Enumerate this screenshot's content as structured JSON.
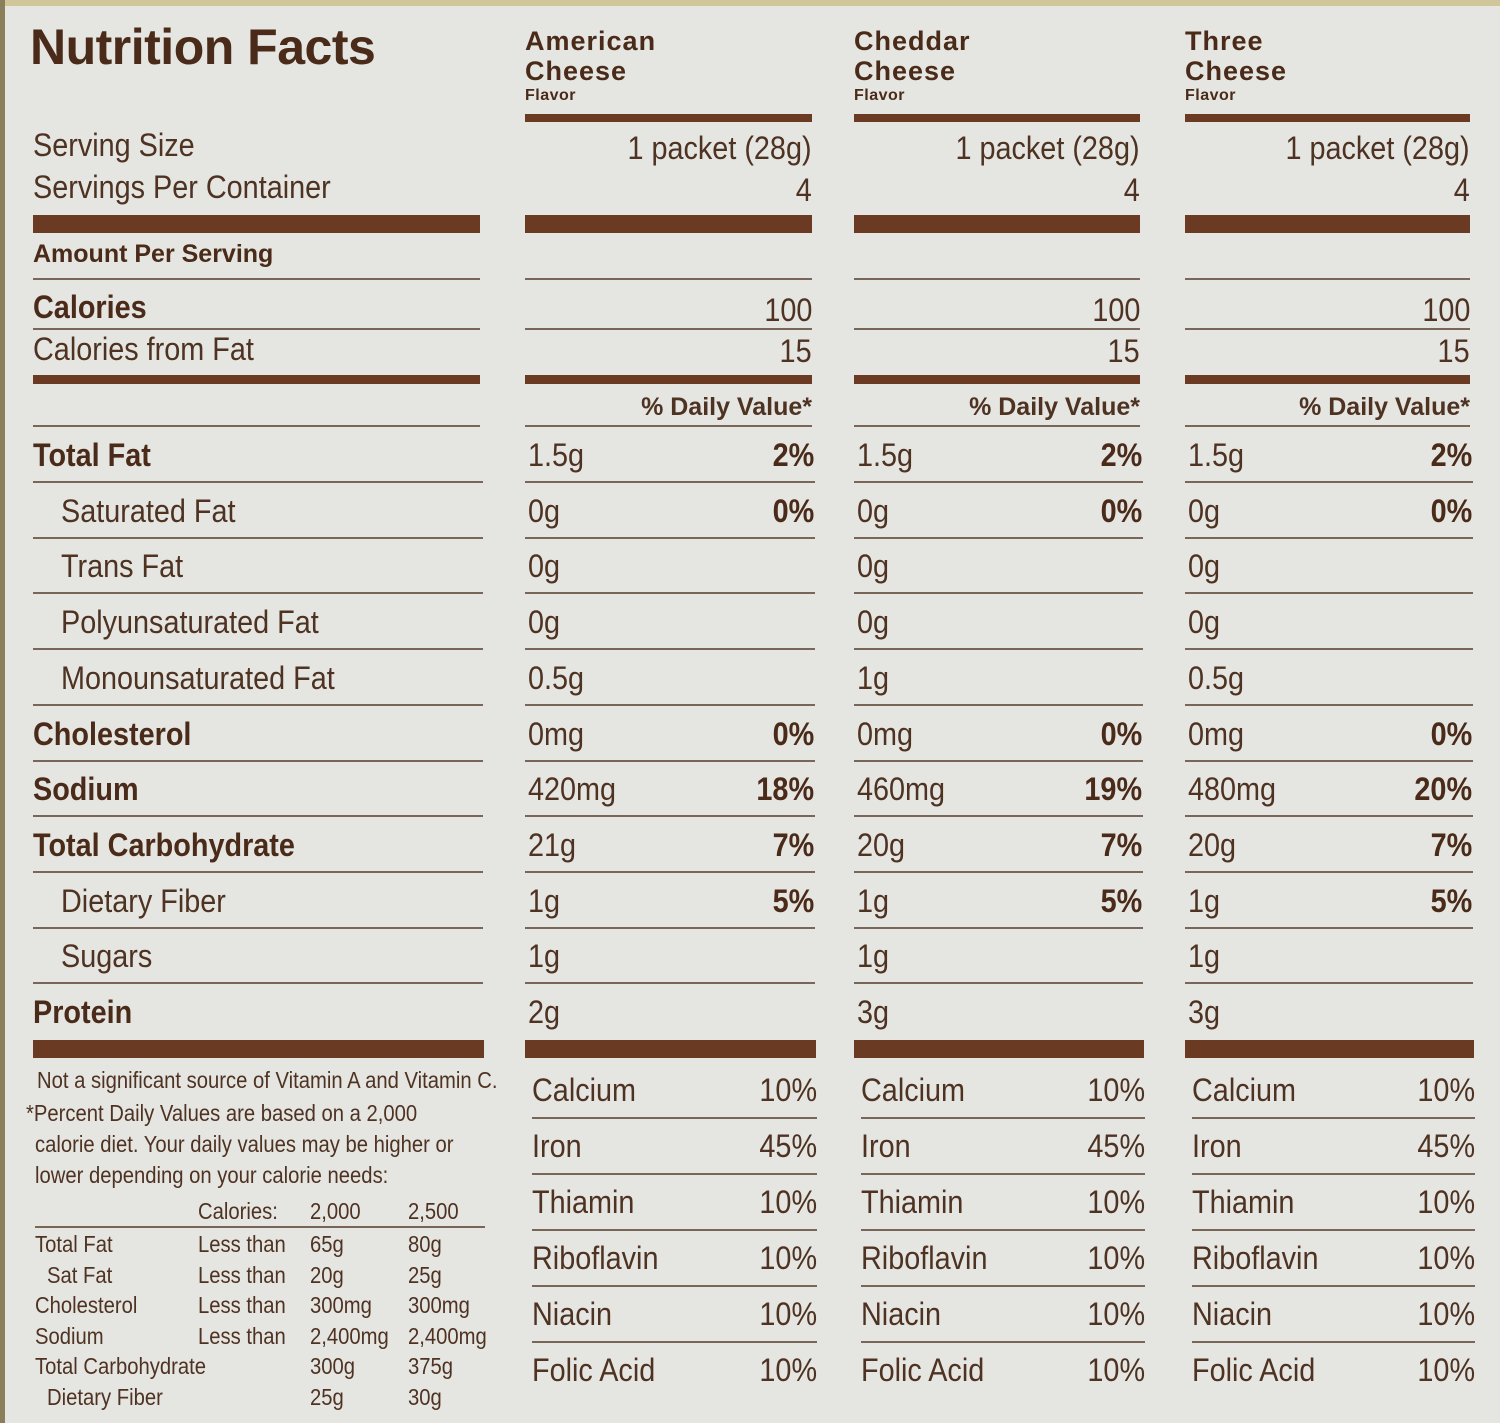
{
  "title": "Nutrition Facts",
  "colors": {
    "text": "#4e3222",
    "bars": "#6a3a22",
    "background": "#e5e5e1"
  },
  "flavors": [
    {
      "name_line1": "American",
      "name_line2": "Cheese",
      "sub": "Flavor",
      "serving_size": "1 packet (28g)",
      "servings": "4",
      "calories": "100",
      "calories_from_fat": "15"
    },
    {
      "name_line1": "Cheddar",
      "name_line2": "Cheese",
      "sub": "Flavor",
      "serving_size": "1 packet (28g)",
      "servings": "4",
      "calories": "100",
      "calories_from_fat": "15"
    },
    {
      "name_line1": "Three",
      "name_line2": "Cheese",
      "sub": "Flavor",
      "serving_size": "1 packet (28g)",
      "servings": "4",
      "calories": "100",
      "calories_from_fat": "15"
    }
  ],
  "labels": {
    "serving_size": "Serving Size",
    "servings_per_container": "Servings Per Container",
    "amount_per_serving": "Amount Per Serving",
    "calories": "Calories",
    "calories_from_fat": "Calories from Fat",
    "daily_value": "% Daily Value*"
  },
  "nutrients": [
    {
      "label": "Total Fat",
      "bold": true,
      "indent": false,
      "values": [
        {
          "amount": "1.5g",
          "dv": "2%"
        },
        {
          "amount": "1.5g",
          "dv": "2%"
        },
        {
          "amount": "1.5g",
          "dv": "2%"
        }
      ]
    },
    {
      "label": "Saturated Fat",
      "bold": false,
      "indent": true,
      "values": [
        {
          "amount": "0g",
          "dv": "0%"
        },
        {
          "amount": "0g",
          "dv": "0%"
        },
        {
          "amount": "0g",
          "dv": "0%"
        }
      ]
    },
    {
      "label": "Trans Fat",
      "bold": false,
      "indent": true,
      "values": [
        {
          "amount": "0g",
          "dv": ""
        },
        {
          "amount": "0g",
          "dv": ""
        },
        {
          "amount": "0g",
          "dv": ""
        }
      ]
    },
    {
      "label": "Polyunsaturated Fat",
      "bold": false,
      "indent": true,
      "values": [
        {
          "amount": "0g",
          "dv": ""
        },
        {
          "amount": "0g",
          "dv": ""
        },
        {
          "amount": "0g",
          "dv": ""
        }
      ]
    },
    {
      "label": "Monounsaturated Fat",
      "bold": false,
      "indent": true,
      "values": [
        {
          "amount": "0.5g",
          "dv": ""
        },
        {
          "amount": "1g",
          "dv": ""
        },
        {
          "amount": "0.5g",
          "dv": ""
        }
      ]
    },
    {
      "label": "Cholesterol",
      "bold": true,
      "indent": false,
      "values": [
        {
          "amount": "0mg",
          "dv": "0%"
        },
        {
          "amount": "0mg",
          "dv": "0%"
        },
        {
          "amount": "0mg",
          "dv": "0%"
        }
      ]
    },
    {
      "label": "Sodium",
      "bold": true,
      "indent": false,
      "values": [
        {
          "amount": "420mg",
          "dv": "18%"
        },
        {
          "amount": "460mg",
          "dv": "19%"
        },
        {
          "amount": "480mg",
          "dv": "20%"
        }
      ]
    },
    {
      "label": "Total Carbohydrate",
      "bold": true,
      "indent": false,
      "values": [
        {
          "amount": "21g",
          "dv": "7%"
        },
        {
          "amount": "20g",
          "dv": "7%"
        },
        {
          "amount": "20g",
          "dv": "7%"
        }
      ]
    },
    {
      "label": "Dietary Fiber",
      "bold": false,
      "indent": true,
      "values": [
        {
          "amount": "1g",
          "dv": "5%"
        },
        {
          "amount": "1g",
          "dv": "5%"
        },
        {
          "amount": "1g",
          "dv": "5%"
        }
      ]
    },
    {
      "label": "Sugars",
      "bold": false,
      "indent": true,
      "values": [
        {
          "amount": "1g",
          "dv": ""
        },
        {
          "amount": "1g",
          "dv": ""
        },
        {
          "amount": "1g",
          "dv": ""
        }
      ]
    },
    {
      "label": "Protein",
      "bold": true,
      "indent": false,
      "values": [
        {
          "amount": "2g",
          "dv": ""
        },
        {
          "amount": "3g",
          "dv": ""
        },
        {
          "amount": "3g",
          "dv": ""
        }
      ]
    }
  ],
  "vitamins": [
    {
      "label": "Calcium",
      "values": [
        "10%",
        "10%",
        "10%"
      ]
    },
    {
      "label": "Iron",
      "values": [
        "45%",
        "45%",
        "45%"
      ]
    },
    {
      "label": "Thiamin",
      "values": [
        "10%",
        "10%",
        "10%"
      ]
    },
    {
      "label": "Riboflavin",
      "values": [
        "10%",
        "10%",
        "10%"
      ]
    },
    {
      "label": "Niacin",
      "values": [
        "10%",
        "10%",
        "10%"
      ]
    },
    {
      "label": "Folic Acid",
      "values": [
        "10%",
        "10%",
        "10%"
      ]
    }
  ],
  "footnote": {
    "vitamin_note": "Not a significant source of Vitamin A and Vitamin C.",
    "dv_note_lines": [
      "*Percent Daily Values are based on a 2,000",
      "calorie diet. Your daily values may be higher or",
      "lower depending on your calorie needs:"
    ],
    "table_header": [
      "Calories:",
      "2,000",
      "2,500"
    ],
    "table_rows": [
      [
        "Total Fat",
        "Less than",
        "65g",
        "80g"
      ],
      [
        " Sat Fat",
        "Less than",
        "20g",
        "25g"
      ],
      [
        "Cholesterol",
        "Less than",
        "300mg",
        "300mg"
      ],
      [
        "Sodium",
        "Less than",
        "2,400mg",
        "2,400mg"
      ],
      [
        "Total Carbohydrate",
        "",
        "300g",
        "375g"
      ],
      [
        " Dietary Fiber",
        "",
        "25g",
        "30g"
      ]
    ]
  }
}
